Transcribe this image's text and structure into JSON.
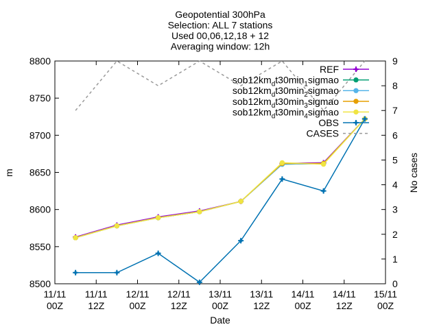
{
  "chart_data": {
    "type": "line",
    "title_lines": [
      "Geopotential 300hPa",
      "Selection: ALL       7 stations",
      "Used 00,06,12,18 + 12",
      "Averaging window: 12h"
    ],
    "xlabel": "Date",
    "ylabel": "m",
    "y2label": "No cases",
    "xlim": [
      "2011-11-11T00:00",
      "2011-11-15T00:00"
    ],
    "ylim": [
      8500,
      8800
    ],
    "y2lim": [
      0,
      9
    ],
    "grid": false,
    "legend_position": "top-right",
    "x_ticks": [
      {
        "line1": "11/11",
        "line2": "00Z"
      },
      {
        "line1": "11/11",
        "line2": "12Z"
      },
      {
        "line1": "12/11",
        "line2": "00Z"
      },
      {
        "line1": "12/11",
        "line2": "12Z"
      },
      {
        "line1": "13/11",
        "line2": "00Z"
      },
      {
        "line1": "13/11",
        "line2": "12Z"
      },
      {
        "line1": "14/11",
        "line2": "00Z"
      },
      {
        "line1": "14/11",
        "line2": "12Z"
      },
      {
        "line1": "15/11",
        "line2": "00Z"
      }
    ],
    "y_ticks": [
      "8500",
      "8550",
      "8600",
      "8650",
      "8700",
      "8750",
      "8800"
    ],
    "y2_ticks": [
      "0",
      "1",
      "2",
      "3",
      "4",
      "5",
      "6",
      "7",
      "8",
      "9"
    ],
    "x": [
      "2011-11-11T06:00",
      "2011-11-11T18:00",
      "2011-11-12T06:00",
      "2011-11-12T18:00",
      "2011-11-13T06:00",
      "2011-11-13T18:00",
      "2011-11-14T06:00",
      "2011-11-14T18:00"
    ],
    "series": [
      {
        "name": "REF",
        "axis": "y",
        "color": "#9400d3",
        "dash": "",
        "marker": "cross",
        "values": [
          8563,
          8579,
          8590,
          8598,
          8611,
          8662,
          8663,
          8722
        ]
      },
      {
        "name": "sob12km_d t30min_1 sigmao",
        "axis": "y",
        "color": "#009e73",
        "dash": "",
        "marker": "circle",
        "values": [
          8562,
          8578,
          8589,
          8597,
          8611,
          8661,
          8662,
          8722
        ]
      },
      {
        "name": "sob12km_d t30min_2 sigmao",
        "axis": "y",
        "color": "#56b4e9",
        "dash": "",
        "marker": "circle",
        "values": [
          8562,
          8578,
          8589,
          8597,
          8611,
          8661,
          8662,
          8722
        ]
      },
      {
        "name": "sob12km_d t30min_3 sigmao",
        "axis": "y",
        "color": "#e69f00",
        "dash": "",
        "marker": "circle",
        "values": [
          8562,
          8578,
          8589,
          8597,
          8611,
          8662,
          8662,
          8722
        ]
      },
      {
        "name": "sob12km_d t30min_4 sigmao",
        "axis": "y",
        "color": "#f0e442",
        "dash": "",
        "marker": "circle",
        "values": [
          8562,
          8578,
          8589,
          8597,
          8611,
          8663,
          8661,
          8722
        ]
      },
      {
        "name": "OBS",
        "axis": "y",
        "color": "#0072b2",
        "dash": "",
        "marker": "cross",
        "values": [
          8515,
          8515,
          8541,
          8502,
          8558,
          8641,
          8625,
          8722
        ]
      },
      {
        "name": "CASES",
        "axis": "y2",
        "color": "#999999",
        "dash": "4,4",
        "marker": "none",
        "values": [
          7,
          9,
          8,
          9,
          8,
          9,
          7,
          9
        ]
      }
    ]
  }
}
